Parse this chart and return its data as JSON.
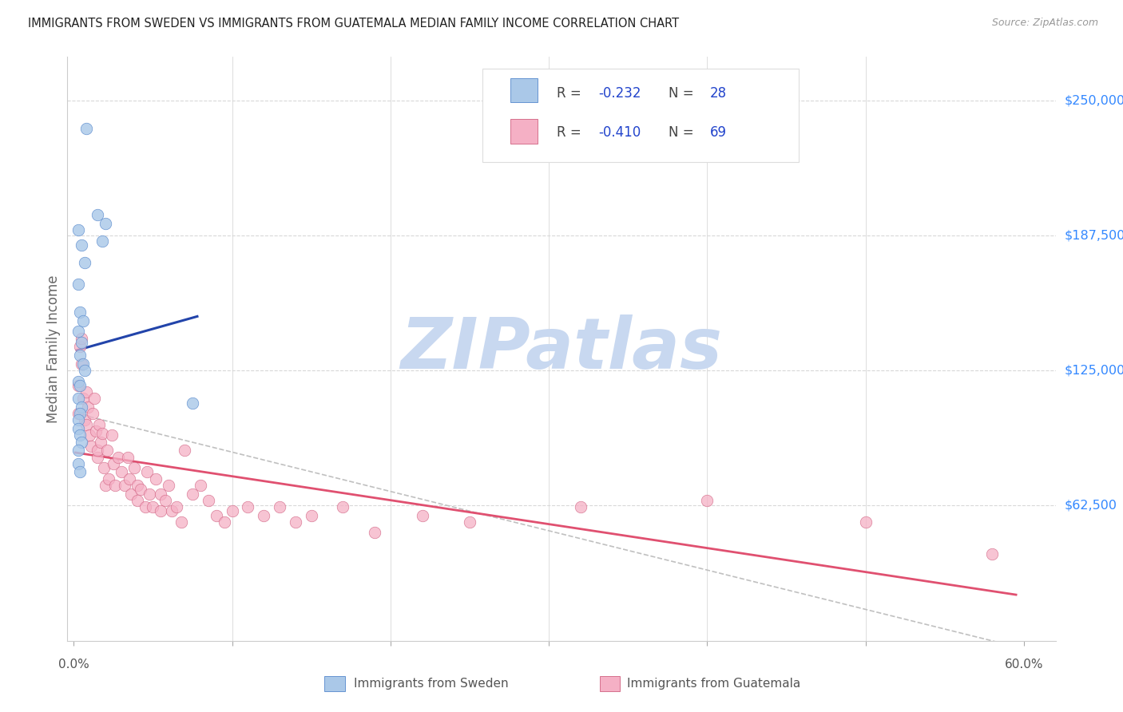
{
  "title": "IMMIGRANTS FROM SWEDEN VS IMMIGRANTS FROM GUATEMALA MEDIAN FAMILY INCOME CORRELATION CHART",
  "source": "Source: ZipAtlas.com",
  "ylabel": "Median Family Income",
  "ytick_labels": [
    "$250,000",
    "$187,500",
    "$125,000",
    "$62,500"
  ],
  "ytick_values": [
    250000,
    187500,
    125000,
    62500
  ],
  "ylim_max": 270000,
  "xlim": [
    -0.004,
    0.62
  ],
  "legend_r_sweden": "R = -0.232",
  "legend_n_sweden": "N = 28",
  "legend_r_guatemala": "R = -0.410",
  "legend_n_guatemala": "N = 69",
  "sweden_label": "Immigrants from Sweden",
  "guatemala_label": "Immigrants from Guatemala",
  "sweden_face_color": "#aac8e8",
  "sweden_edge_color": "#5588cc",
  "guatemala_face_color": "#f5b0c5",
  "guatemala_edge_color": "#d06080",
  "sweden_line_color": "#2244aa",
  "guatemala_line_color": "#e05070",
  "dashed_line_color": "#c0c0c0",
  "watermark_color": "#c8d8f0",
  "grid_color": "#d8d8d8",
  "title_color": "#222222",
  "source_color": "#999999",
  "axis_label_color": "#666666",
  "ytick_label_color": "#3388ff",
  "xtick_label_color": "#555555",
  "legend_text_color": "#2244cc",
  "legend_r_color": "#444444",
  "background_color": "#ffffff",
  "sweden_x": [
    0.008,
    0.015,
    0.02,
    0.018,
    0.003,
    0.005,
    0.007,
    0.003,
    0.004,
    0.006,
    0.003,
    0.005,
    0.004,
    0.006,
    0.007,
    0.003,
    0.004,
    0.003,
    0.005,
    0.004,
    0.003,
    0.003,
    0.004,
    0.005,
    0.003,
    0.075,
    0.003,
    0.004
  ],
  "sweden_y": [
    237000,
    197000,
    193000,
    185000,
    190000,
    183000,
    175000,
    165000,
    152000,
    148000,
    143000,
    138000,
    132000,
    128000,
    125000,
    120000,
    118000,
    112000,
    108000,
    105000,
    102000,
    98000,
    95000,
    92000,
    88000,
    110000,
    82000,
    78000
  ],
  "guatemala_x": [
    0.003,
    0.004,
    0.005,
    0.005,
    0.006,
    0.007,
    0.008,
    0.008,
    0.009,
    0.01,
    0.011,
    0.012,
    0.013,
    0.014,
    0.015,
    0.015,
    0.016,
    0.017,
    0.018,
    0.019,
    0.02,
    0.021,
    0.022,
    0.024,
    0.025,
    0.026,
    0.028,
    0.03,
    0.032,
    0.034,
    0.035,
    0.036,
    0.038,
    0.04,
    0.04,
    0.042,
    0.045,
    0.046,
    0.048,
    0.05,
    0.052,
    0.055,
    0.055,
    0.058,
    0.06,
    0.062,
    0.065,
    0.068,
    0.07,
    0.075,
    0.08,
    0.085,
    0.09,
    0.095,
    0.1,
    0.11,
    0.12,
    0.13,
    0.14,
    0.15,
    0.17,
    0.19,
    0.22,
    0.25,
    0.32,
    0.4,
    0.5,
    0.58,
    0.003
  ],
  "guatemala_y": [
    105000,
    136000,
    140000,
    128000,
    112000,
    102000,
    115000,
    100000,
    108000,
    95000,
    90000,
    105000,
    112000,
    97000,
    85000,
    88000,
    100000,
    92000,
    96000,
    80000,
    72000,
    88000,
    75000,
    95000,
    82000,
    72000,
    85000,
    78000,
    72000,
    85000,
    75000,
    68000,
    80000,
    72000,
    65000,
    70000,
    62000,
    78000,
    68000,
    62000,
    75000,
    68000,
    60000,
    65000,
    72000,
    60000,
    62000,
    55000,
    88000,
    68000,
    72000,
    65000,
    58000,
    55000,
    60000,
    62000,
    58000,
    62000,
    55000,
    58000,
    62000,
    50000,
    58000,
    55000,
    62000,
    65000,
    55000,
    40000,
    118000
  ]
}
